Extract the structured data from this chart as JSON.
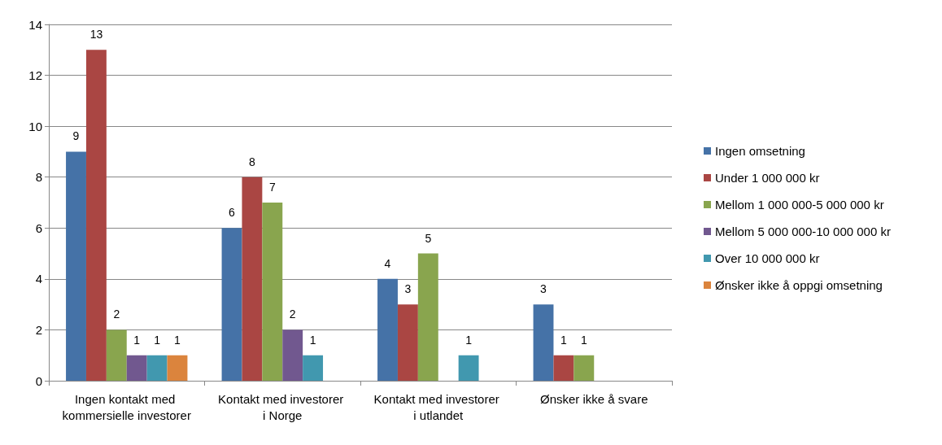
{
  "chart_data": {
    "type": "bar",
    "categories": [
      "Ingen kontakt med kommersielle investorer",
      "Kontakt med investorer i Norge",
      "Kontakt med investorer i utlandet",
      "Ønsker ikke å svare"
    ],
    "series": [
      {
        "name": "Ingen omsetning",
        "color": "#4572a7",
        "values": [
          9,
          6,
          4,
          3
        ]
      },
      {
        "name": "Under 1 000 000 kr",
        "color": "#aa4643",
        "values": [
          13,
          8,
          3,
          1
        ]
      },
      {
        "name": "Mellom 1 000 000-5 000 000 kr",
        "color": "#89a54e",
        "values": [
          2,
          7,
          5,
          1
        ]
      },
      {
        "name": "Mellom 5 000 000-10 000 000 kr",
        "color": "#71588f",
        "values": [
          1,
          2,
          null,
          null
        ]
      },
      {
        "name": "Over 10 000 000 kr",
        "color": "#4198af",
        "values": [
          1,
          1,
          1,
          null
        ]
      },
      {
        "name": "Ønsker ikke å oppgi omsetning",
        "color": "#db843d",
        "values": [
          1,
          null,
          null,
          null
        ]
      }
    ],
    "ylim": [
      0,
      14
    ],
    "yticks": [
      0,
      2,
      4,
      6,
      8,
      10,
      12,
      14
    ],
    "grid": "y",
    "legend": "right",
    "data_labels": true
  }
}
